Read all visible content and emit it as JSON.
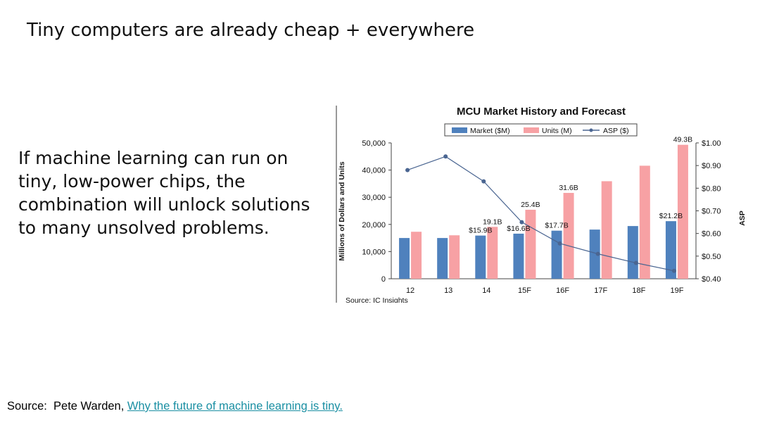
{
  "slide": {
    "title": "Tiny computers are already cheap + everywhere",
    "body": "If machine learning can run on tiny, low-power chips, the combination will unlock solutions to many unsolved problems.",
    "source_prefix": "Source:  Pete Warden, ",
    "source_link_text": "Why the future of machine learning is tiny."
  },
  "chart_data": {
    "type": "bar",
    "title": "MCU Market History and Forecast",
    "categories": [
      "12",
      "13",
      "14",
      "15F",
      "16F",
      "17F",
      "18F",
      "19F"
    ],
    "ylabel": "Millions of Dollars and Units",
    "y2label": "ASP",
    "ylim": [
      0,
      50000
    ],
    "y2lim": [
      0.4,
      1.0
    ],
    "yticks": [
      "0",
      "10,000",
      "20,000",
      "30,000",
      "40,000",
      "50,000"
    ],
    "y2ticks": [
      "$0.40",
      "$0.50",
      "$0.60",
      "$0.70",
      "$0.80",
      "$0.90",
      "$1.00"
    ],
    "series": [
      {
        "name": "Market ($M)",
        "color": "#4f81bd",
        "values": [
          15000,
          15000,
          15900,
          16600,
          17700,
          18100,
          19400,
          21200
        ],
        "labels": [
          "",
          "",
          "$15.9B",
          "$16.6B",
          "$17.7B",
          "",
          "",
          "$21.2B"
        ]
      },
      {
        "name": "Units (M)",
        "color": "#f7a1a4",
        "values": [
          17300,
          16000,
          19100,
          25400,
          31600,
          35900,
          41600,
          49300
        ],
        "labels": [
          "",
          "",
          "19.1B",
          "25.4B",
          "31.6B",
          "",
          "",
          "49.3B"
        ]
      },
      {
        "name": "ASP ($)",
        "color": "#4a6591",
        "axis": "right",
        "values": [
          0.88,
          0.94,
          0.83,
          0.65,
          0.556,
          0.51,
          0.47,
          0.435
        ]
      }
    ],
    "legend_position": "top",
    "grid": false,
    "source_note": "Source: IC Insights"
  }
}
